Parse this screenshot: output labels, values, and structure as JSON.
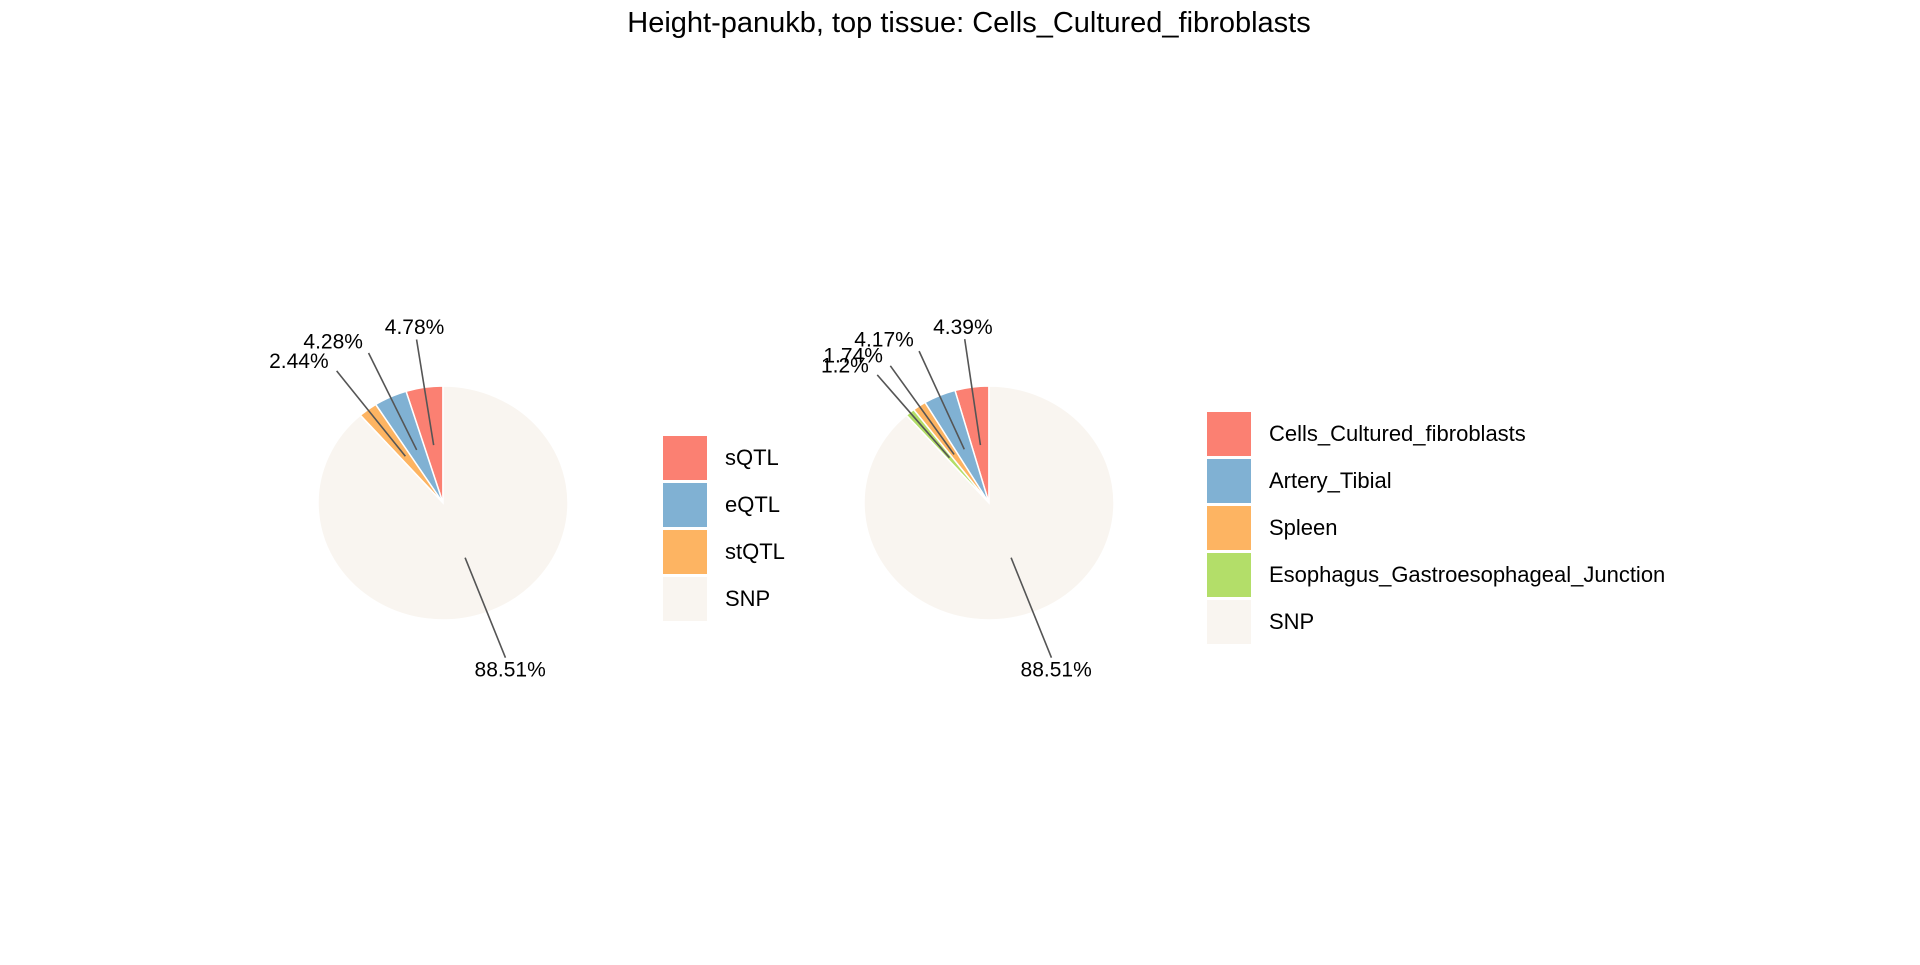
{
  "title": "Height-panukb, top tissue: Cells_Cultured_fibroblasts",
  "chart_data": [
    {
      "type": "pie",
      "slices": [
        {
          "label": "sQTL",
          "value": 4.78,
          "text": "4.78%",
          "color": "#FB8072"
        },
        {
          "label": "eQTL",
          "value": 4.28,
          "text": "4.28%",
          "color": "#80B1D3"
        },
        {
          "label": "stQTL",
          "value": 2.44,
          "text": "2.44%",
          "color": "#FDB462"
        },
        {
          "label": "SNP",
          "value": 88.51,
          "text": "88.51%",
          "color": "#F9F5F0"
        }
      ],
      "legend": [
        "sQTL",
        "eQTL",
        "stQTL",
        "SNP"
      ],
      "legend_position": "right"
    },
    {
      "type": "pie",
      "slices": [
        {
          "label": "Cells_Cultured_fibroblasts",
          "value": 4.39,
          "text": "4.39%",
          "color": "#FB8072"
        },
        {
          "label": "Artery_Tibial",
          "value": 4.17,
          "text": "4.17%",
          "color": "#80B1D3"
        },
        {
          "label": "Spleen",
          "value": 1.74,
          "text": "1.74%",
          "color": "#FDB462"
        },
        {
          "label": "Esophagus_Gastroesophageal_Junction",
          "value": 1.2,
          "text": "1.2%",
          "color": "#B3DE69"
        },
        {
          "label": "SNP",
          "value": 88.51,
          "text": "88.51%",
          "color": "#F9F5F0"
        }
      ],
      "legend": [
        "Cells_Cultured_fibroblasts",
        "Artery_Tibial",
        "Spleen",
        "Esophagus_Gastroesophageal_Junction",
        "SNP"
      ],
      "legend_position": "right"
    }
  ]
}
